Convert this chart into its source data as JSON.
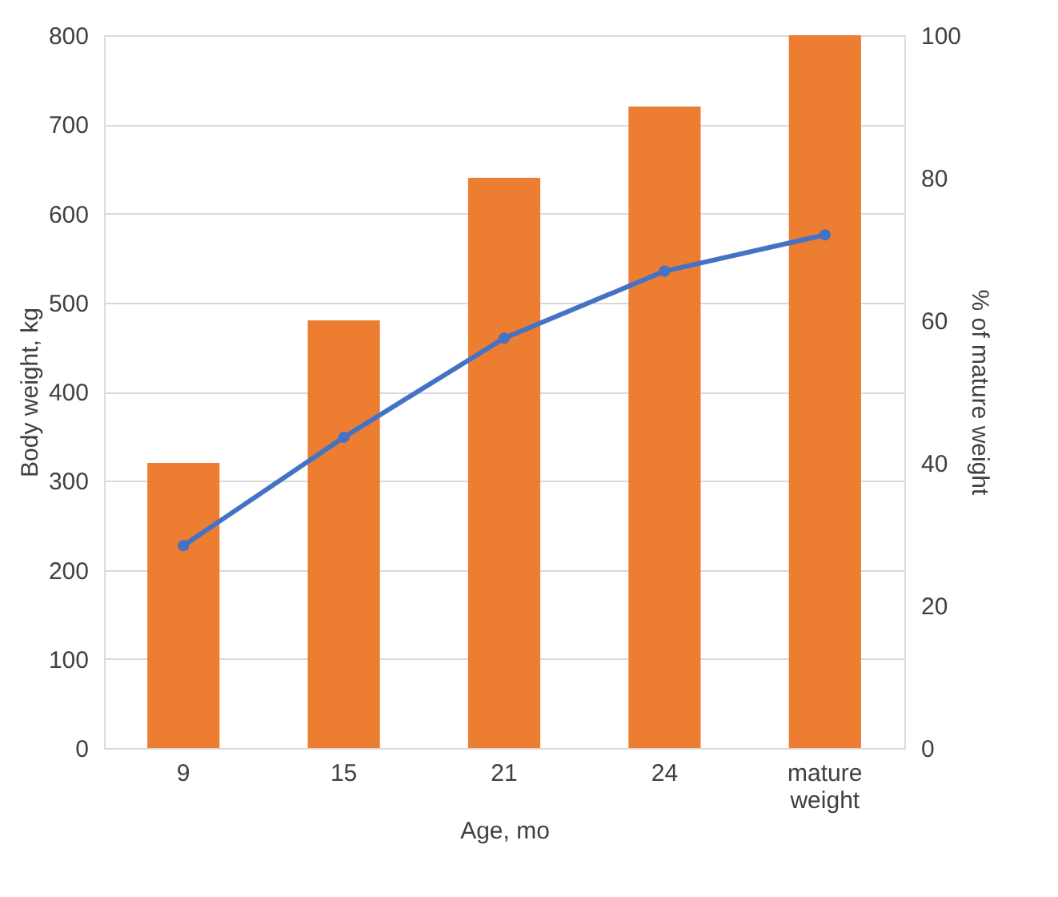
{
  "chart_data": {
    "type": "bar",
    "xlabel": "Age, mo",
    "ylabel": "Body weight, kg",
    "y2label": "% of mature weight",
    "categories": [
      "9",
      "15",
      "21",
      "24",
      "mature weight"
    ],
    "series": [
      {
        "color": "#ed7d31",
        "values": [
          320,
          480,
          640,
          720,
          800
        ]
      },
      {
        "type": "line",
        "axis": "y2",
        "color": "#4472c4",
        "values": [
          28.4,
          43.6,
          57.5,
          66.9,
          72.0
        ]
      }
    ],
    "ylim": [
      0,
      800
    ],
    "yticks": [
      0,
      100,
      200,
      300,
      400,
      500,
      600,
      700,
      800
    ],
    "y2lim": [
      0,
      100
    ],
    "y2ticks": [
      0,
      20,
      40,
      60,
      80,
      100
    ],
    "grid": "y",
    "marker": "circle",
    "line_style": "solid"
  }
}
